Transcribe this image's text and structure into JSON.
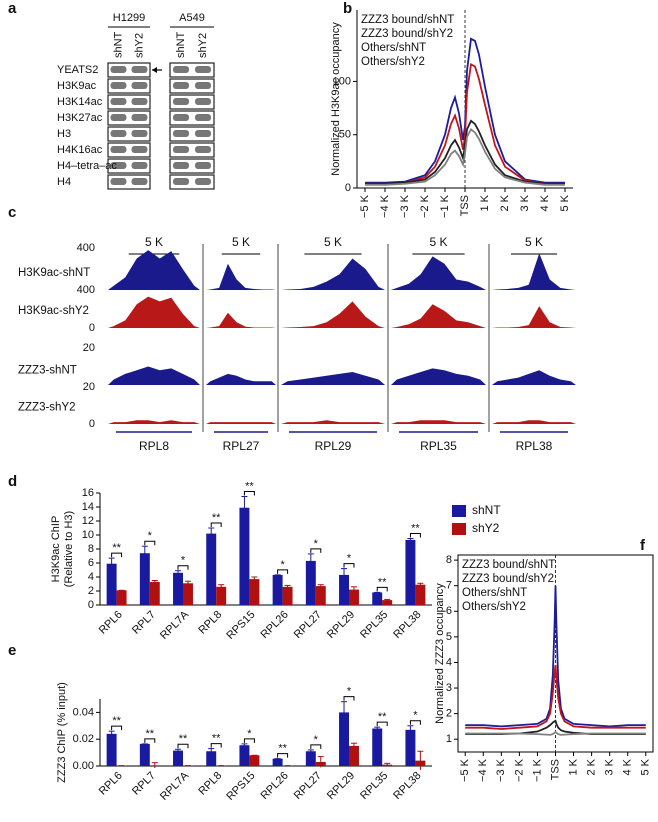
{
  "blot": {
    "panel": "a",
    "cell_lines": [
      {
        "name": "H1299",
        "lanes": [
          "shNT",
          "shY2"
        ]
      },
      {
        "name": "A549",
        "lanes": [
          "shNT",
          "shY2"
        ]
      }
    ],
    "rows": [
      "YEATS2",
      "H3K9ac",
      "H3K14ac",
      "H3K27ac",
      "H3",
      "H4K16ac",
      "H4–tetra–ac",
      "H4"
    ]
  },
  "chart_data": [
    {
      "type": "line",
      "panel": "b",
      "ylabel": "Normalized H3K9ac occupancy",
      "x": [
        -5000,
        -4000,
        -3000,
        -2000,
        -1500,
        -1000,
        -700,
        -500,
        -300,
        -100,
        0,
        100,
        300,
        500,
        700,
        1000,
        1500,
        2000,
        3000,
        4000,
        5000
      ],
      "xlim": [
        -5400,
        5400
      ],
      "xticks": [
        {
          "value": -5000,
          "label": "−5 K"
        },
        {
          "value": -4000,
          "label": "−4 K"
        },
        {
          "value": -3000,
          "label": "−3 K"
        },
        {
          "value": -2000,
          "label": "−2 K"
        },
        {
          "value": -1000,
          "label": "−1 K"
        },
        {
          "value": 0,
          "label": "TSS"
        },
        {
          "value": 1000,
          "label": "1 K"
        },
        {
          "value": 2000,
          "label": "2 K"
        },
        {
          "value": 3000,
          "label": "3 K"
        },
        {
          "value": 4000,
          "label": "4 K"
        },
        {
          "value": 5000,
          "label": "5 K"
        }
      ],
      "ylim": [
        0,
        167
      ],
      "yticks": [
        0,
        50,
        100
      ],
      "vline": {
        "x": 0,
        "style": "dashed"
      },
      "legend": "upper left",
      "frame": false,
      "series": [
        {
          "name": "ZZZ3 bound/shNT",
          "color": "#1c1c9c",
          "values": [
            5,
            5,
            6,
            12,
            25,
            50,
            75,
            85,
            70,
            45,
            58,
            110,
            140,
            138,
            125,
            95,
            50,
            25,
            8,
            5,
            5
          ]
        },
        {
          "name": "ZZZ3 bound/shY2",
          "color": "#c0151a",
          "values": [
            4,
            4,
            5,
            10,
            20,
            40,
            60,
            68,
            56,
            36,
            48,
            90,
            116,
            114,
            102,
            78,
            40,
            20,
            7,
            4,
            4
          ]
        },
        {
          "name": "Others/shNT",
          "color": "#222222",
          "values": [
            4,
            4,
            5,
            8,
            15,
            28,
            40,
            45,
            38,
            28,
            40,
            55,
            63,
            60,
            53,
            40,
            22,
            12,
            6,
            4,
            4
          ]
        },
        {
          "name": "Others/shY2",
          "color": "#808080",
          "values": [
            3,
            3,
            4,
            6,
            12,
            22,
            32,
            35,
            30,
            22,
            32,
            48,
            55,
            52,
            46,
            34,
            18,
            10,
            5,
            3,
            3
          ]
        }
      ]
    },
    {
      "type": "tracks",
      "panel": "c",
      "loci": [
        {
          "name": "RPL8",
          "scale_bar": "5 K"
        },
        {
          "name": "RPL27",
          "scale_bar": "5 K"
        },
        {
          "name": "RPL29",
          "scale_bar": "5 K"
        },
        {
          "name": "RPL35",
          "scale_bar": "5 K"
        },
        {
          "name": "RPL38",
          "scale_bar": "5 K"
        }
      ],
      "tracks": [
        {
          "name": "H3K9ac-shNT",
          "color": "#1a1a8c",
          "ylim": [
            0,
            400
          ],
          "yticks": [
            400
          ],
          "values": [
            [
              40,
              120,
              300,
              380,
              300,
              370,
              200,
              40
            ],
            [
              5,
              20,
              250,
              100,
              20,
              10,
              5,
              5
            ],
            [
              5,
              10,
              30,
              80,
              150,
              300,
              200,
              30
            ],
            [
              20,
              60,
              150,
              320,
              250,
              100,
              80,
              30
            ],
            [
              5,
              10,
              20,
              50,
              350,
              100,
              20,
              5
            ]
          ]
        },
        {
          "name": "H3K9ac-shY2",
          "color": "#b81818",
          "ylim": [
            0,
            400
          ],
          "yticks": [
            0,
            400
          ],
          "values": [
            [
              20,
              80,
              250,
              330,
              280,
              320,
              150,
              20
            ],
            [
              5,
              20,
              160,
              60,
              15,
              5,
              5,
              5
            ],
            [
              5,
              10,
              20,
              60,
              150,
              280,
              120,
              20
            ],
            [
              10,
              40,
              100,
              250,
              180,
              80,
              60,
              20
            ],
            [
              5,
              5,
              10,
              30,
              230,
              60,
              10,
              5
            ]
          ]
        },
        {
          "name": "ZZZ3-shNT",
          "color": "#1a1a8c",
          "ylim": [
            0,
            20
          ],
          "yticks": [
            20
          ],
          "values": [
            [
              3,
              6,
              8,
              10,
              8,
              9,
              6,
              3
            ],
            [
              2,
              4,
              6,
              5,
              3,
              2,
              2,
              2
            ],
            [
              2,
              3,
              4,
              5,
              6,
              7,
              5,
              3
            ],
            [
              3,
              5,
              7,
              9,
              8,
              6,
              5,
              3
            ],
            [
              2,
              3,
              4,
              6,
              8,
              5,
              3,
              2
            ]
          ]
        },
        {
          "name": "ZZZ3-shY2",
          "color": "#b81818",
          "ylim": [
            0,
            20
          ],
          "yticks": [
            0,
            20
          ],
          "values": [
            [
              1,
              1,
              2,
              2,
              1,
              2,
              1,
              1
            ],
            [
              1,
              1,
              1,
              1,
              1,
              1,
              1,
              1
            ],
            [
              1,
              1,
              1,
              2,
              1,
              1,
              1,
              1
            ],
            [
              1,
              1,
              2,
              2,
              2,
              1,
              1,
              1
            ],
            [
              1,
              1,
              1,
              2,
              2,
              1,
              1,
              1
            ]
          ]
        }
      ]
    },
    {
      "type": "bar",
      "panel": "d",
      "ylabel": [
        "H3K9ac ChIP",
        "(Relative to H3)"
      ],
      "legend": "right",
      "categories": [
        "RPL6",
        "RPL7",
        "RPL7A",
        "RPL8",
        "RPS15",
        "RPL26",
        "RPL27",
        "RPL29",
        "RPL35",
        "RPL38"
      ],
      "ylim": [
        0,
        16
      ],
      "yticks": [
        0,
        2,
        4,
        6,
        8,
        10,
        12,
        14,
        16
      ],
      "series": [
        {
          "name": "shNT",
          "color": "#1a1aa0",
          "values": [
            5.9,
            7.4,
            4.6,
            10.2,
            13.9,
            4.3,
            6.3,
            4.3,
            1.8,
            9.3
          ],
          "errors": [
            0.8,
            1.0,
            0.3,
            0.8,
            1.6,
            0,
            1.0,
            0.9,
            0,
            0.2
          ]
        },
        {
          "name": "shY2",
          "color": "#b01010",
          "values": [
            2.1,
            3.3,
            3.1,
            2.6,
            3.7,
            2.6,
            2.7,
            2.2,
            0.7,
            2.9
          ],
          "errors": [
            0,
            0.2,
            0.3,
            0.3,
            0.3,
            0.2,
            0.2,
            0.4,
            0.1,
            0.2
          ]
        }
      ],
      "significance": [
        "**",
        "*",
        "*",
        "**",
        "**",
        "*",
        "*",
        "*",
        "**",
        "**"
      ]
    },
    {
      "type": "bar",
      "panel": "e",
      "ylabel": "ZZZ3 ChIP (% input)",
      "categories": [
        "RPL6",
        "RPL7",
        "RPL7A",
        "RPL8",
        "RPS15",
        "RPL26",
        "RPL27",
        "RPL29",
        "RPL35",
        "RPL38"
      ],
      "ylim": [
        0,
        0.05
      ],
      "yticks": [
        {
          "value": 0,
          "label": "0.00"
        },
        {
          "value": 0.02,
          "label": "0.02"
        },
        {
          "value": 0.04,
          "label": "0.04"
        }
      ],
      "series": [
        {
          "color": "#1a1aa0",
          "values": [
            0.024,
            0.0165,
            0.0115,
            0.011,
            0.0155,
            0.0055,
            0.011,
            0.04,
            0.028,
            0.027
          ],
          "errors": [
            0.002,
            0,
            0.001,
            0.002,
            0.001,
            0,
            0.001,
            0.008,
            0.001,
            0.003
          ]
        },
        {
          "color": "#b01010",
          "values": [
            0.0003,
            0.0005,
            0.0003,
            0.0003,
            0.008,
            0.0003,
            0.003,
            0.015,
            0.001,
            0.004
          ],
          "errors": [
            0,
            0.002,
            0,
            0,
            0,
            0,
            0.004,
            0.002,
            0.001,
            0.007
          ]
        }
      ],
      "significance": [
        "**",
        "**",
        "**",
        "**",
        "*",
        "**",
        "*",
        "*",
        "**",
        "*"
      ]
    },
    {
      "type": "line",
      "panel": "f",
      "ylabel": "Normalized ZZZ3 occupancy",
      "x": [
        -5000,
        -4000,
        -3000,
        -2000,
        -1000,
        -500,
        -300,
        -150,
        -50,
        0,
        50,
        150,
        300,
        500,
        1000,
        2000,
        3000,
        4000,
        5000
      ],
      "xlim": [
        -5400,
        5400
      ],
      "xticks": [
        {
          "value": -5000,
          "label": "−5 K"
        },
        {
          "value": -4000,
          "label": "−4 K"
        },
        {
          "value": -3000,
          "label": "−3 K"
        },
        {
          "value": -2000,
          "label": "−2 K"
        },
        {
          "value": -1000,
          "label": "−1 K"
        },
        {
          "value": 0,
          "label": "TSS"
        },
        {
          "value": 1000,
          "label": "1 K"
        },
        {
          "value": 2000,
          "label": "2 K"
        },
        {
          "value": 3000,
          "label": "3 K"
        },
        {
          "value": 4000,
          "label": "4 K"
        },
        {
          "value": 5000,
          "label": "5 K"
        }
      ],
      "ylim": [
        0.5,
        8.2
      ],
      "yticks": [
        1,
        2,
        3,
        4,
        5,
        6,
        7,
        8
      ],
      "vline": {
        "x": 0,
        "style": "dashed"
      },
      "legend": "upper left",
      "frame": true,
      "series": [
        {
          "name": "ZZZ3 bound/shNT",
          "color": "#1c1c9c",
          "values": [
            1.55,
            1.55,
            1.5,
            1.55,
            1.6,
            1.8,
            2.2,
            3.5,
            5.5,
            7.0,
            5.5,
            3.3,
            2.2,
            1.8,
            1.6,
            1.55,
            1.5,
            1.55,
            1.55
          ]
        },
        {
          "name": "ZZZ3 bound/shY2",
          "color": "#c0151a",
          "values": [
            1.45,
            1.45,
            1.4,
            1.45,
            1.5,
            1.7,
            2.0,
            2.8,
            3.6,
            3.9,
            3.4,
            2.6,
            2.0,
            1.7,
            1.5,
            1.45,
            1.45,
            1.45,
            1.45
          ]
        },
        {
          "name": "Others/shNT",
          "color": "#222222",
          "values": [
            1.2,
            1.2,
            1.2,
            1.22,
            1.3,
            1.45,
            1.55,
            1.65,
            1.7,
            1.72,
            1.6,
            1.45,
            1.35,
            1.3,
            1.25,
            1.2,
            1.2,
            1.2,
            1.2
          ]
        },
        {
          "name": "Others/shY2",
          "color": "#808080",
          "values": [
            1.22,
            1.22,
            1.22,
            1.22,
            1.2,
            1.18,
            1.17,
            1.2,
            1.25,
            1.28,
            1.25,
            1.2,
            1.17,
            1.18,
            1.2,
            1.22,
            1.22,
            1.22,
            1.22
          ]
        }
      ]
    }
  ]
}
